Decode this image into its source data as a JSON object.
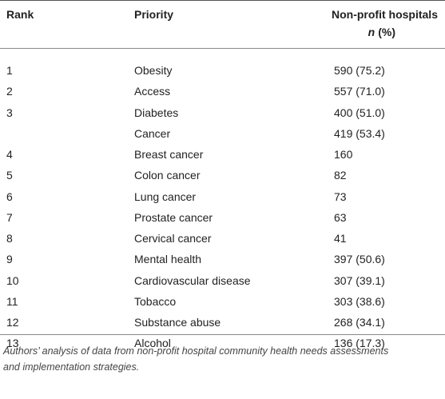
{
  "table": {
    "headers": [
      "Rank",
      "Priority",
      "Non-profit hospitals"
    ],
    "header_sub": [
      "n",
      "(%)"
    ],
    "rows": [
      [
        "1",
        "Obesity",
        "590 (75.2)"
      ],
      [
        "2",
        "Access",
        "557 (71.0)"
      ],
      [
        "3",
        "Diabetes",
        "400 (51.0)"
      ],
      [
        null,
        "Cancer",
        "419 (53.4)"
      ],
      [
        "4",
        "Breast cancer",
        "160"
      ],
      [
        "5",
        "Colon cancer",
        "82"
      ],
      [
        "6",
        "Lung cancer",
        "73"
      ],
      [
        "7",
        "Prostate cancer",
        "63"
      ],
      [
        "8",
        "Cervical cancer",
        "41"
      ],
      [
        "9",
        "Mental health",
        "397 (50.6)"
      ],
      [
        "10",
        "Cardiovascular disease",
        "307 (39.1)"
      ],
      [
        "11",
        "Tobacco",
        "303 (38.6)"
      ],
      [
        "12",
        "Substance abuse",
        "268 (34.1)"
      ],
      [
        "13",
        "Alcohol",
        "136 (17.3)"
      ]
    ]
  },
  "footnote": [
    "Authors’ analysis of data from non-profit hospital community health needs assessments",
    "and implementation strategies."
  ]
}
